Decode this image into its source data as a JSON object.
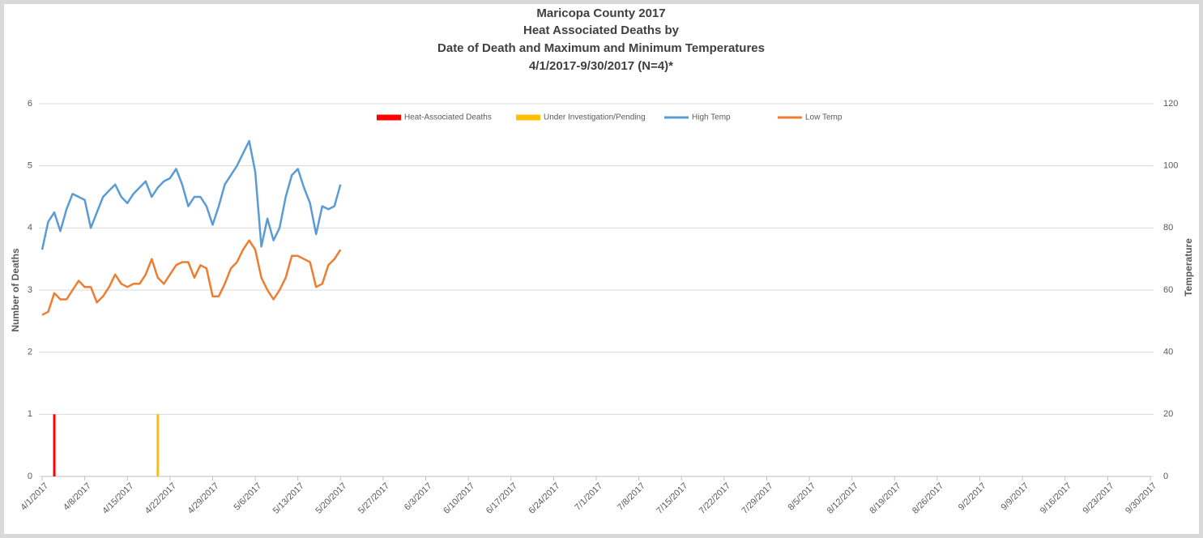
{
  "chart_data": {
    "type": "bar",
    "title_lines": [
      "Maricopa County 2017",
      "Heat Associated Deaths by",
      "Date of Death and Maximum and Minimum Temperatures",
      "4/1/2017-9/30/2017 (N=4)*"
    ],
    "y_label": "Number of Deaths",
    "y2_label": "Temperature",
    "x": [
      "4/1/2017",
      "4/2/2017",
      "4/3/2017",
      "4/4/2017",
      "4/5/2017",
      "4/6/2017",
      "4/7/2017",
      "4/8/2017",
      "4/9/2017",
      "4/10/2017",
      "4/11/2017",
      "4/12/2017",
      "4/13/2017",
      "4/14/2017",
      "4/15/2017",
      "4/16/2017",
      "4/17/2017",
      "4/18/2017",
      "4/19/2017",
      "4/20/2017",
      "4/21/2017",
      "4/22/2017",
      "4/23/2017",
      "4/24/2017",
      "4/25/2017",
      "4/26/2017",
      "4/27/2017",
      "4/28/2017",
      "4/29/2017",
      "4/30/2017",
      "5/1/2017",
      "5/2/2017",
      "5/3/2017",
      "5/4/2017",
      "5/5/2017",
      "5/6/2017",
      "5/7/2017",
      "5/8/2017",
      "5/9/2017",
      "5/10/2017",
      "5/11/2017",
      "5/12/2017",
      "5/13/2017",
      "5/14/2017",
      "5/15/2017",
      "5/16/2017",
      "5/17/2017",
      "5/18/2017",
      "5/19/2017",
      "5/20/2017"
    ],
    "series": [
      {
        "name": "Heat-Associated Deaths",
        "type": "bar",
        "color": "#ff0000",
        "values": [
          null,
          null,
          1,
          null,
          null,
          null,
          null,
          null,
          null,
          null,
          null,
          null,
          null,
          null,
          null,
          null,
          null,
          null,
          null,
          null,
          null,
          null,
          null,
          null,
          null,
          null,
          null,
          null,
          null,
          null,
          null,
          null,
          null,
          null,
          null,
          null,
          null,
          null,
          null,
          null,
          null,
          null,
          null,
          null,
          null,
          null,
          null,
          null,
          null,
          null
        ]
      },
      {
        "name": "Under Investigation/Pending",
        "type": "bar",
        "color": "#ffc000",
        "values": [
          null,
          null,
          null,
          null,
          null,
          null,
          null,
          null,
          null,
          null,
          null,
          null,
          null,
          null,
          null,
          null,
          null,
          null,
          null,
          1,
          null,
          null,
          null,
          null,
          null,
          null,
          null,
          null,
          null,
          null,
          null,
          null,
          null,
          null,
          null,
          null,
          null,
          null,
          null,
          null,
          null,
          null,
          null,
          null,
          null,
          null,
          null,
          null,
          null,
          null
        ]
      },
      {
        "name": "High Temp",
        "type": "line",
        "axis": "y2",
        "color": "#5b9bd5",
        "values": [
          73,
          82,
          85,
          79,
          86,
          91,
          90,
          89,
          80,
          85,
          90,
          92,
          94,
          90,
          88,
          91,
          93,
          95,
          90,
          93,
          95,
          96,
          99,
          94,
          87,
          90,
          90,
          87,
          81,
          87,
          94,
          97,
          100,
          104,
          108,
          98,
          74,
          83,
          76,
          80,
          90,
          97,
          99,
          93,
          88,
          78,
          87,
          86,
          87,
          94
        ]
      },
      {
        "name": "Low Temp",
        "type": "line",
        "axis": "y2",
        "color": "#ed7d31",
        "values": [
          52,
          53,
          59,
          57,
          57,
          60,
          63,
          61,
          61,
          56,
          58,
          61,
          65,
          62,
          61,
          62,
          62,
          65,
          70,
          64,
          62,
          65,
          68,
          69,
          69,
          64,
          68,
          67,
          58,
          58,
          62,
          67,
          69,
          73,
          76,
          73,
          64,
          60,
          57,
          60,
          64,
          71,
          71,
          70,
          69,
          61,
          62,
          68,
          70,
          73
        ]
      }
    ],
    "xlim": [
      "4/1/2017",
      "9/30/2017"
    ],
    "xticks": [
      "4/1/2017",
      "4/8/2017",
      "4/15/2017",
      "4/22/2017",
      "4/29/2017",
      "5/6/2017",
      "5/13/2017",
      "5/20/2017",
      "5/27/2017",
      "6/3/2017",
      "6/10/2017",
      "6/17/2017",
      "6/24/2017",
      "7/1/2017",
      "7/8/2017",
      "7/15/2017",
      "7/22/2017",
      "7/29/2017",
      "8/5/2017",
      "8/12/2017",
      "8/19/2017",
      "8/26/2017",
      "9/2/2017",
      "9/9/2017",
      "9/16/2017",
      "9/23/2017",
      "9/30/2017"
    ],
    "ylim": [
      0,
      6
    ],
    "yticks": [
      0,
      1,
      2,
      3,
      4,
      5,
      6
    ],
    "y2lim": [
      0,
      120
    ],
    "y2ticks": [
      0,
      20,
      40,
      60,
      80,
      100,
      120
    ],
    "grid": true,
    "legend": "top"
  }
}
